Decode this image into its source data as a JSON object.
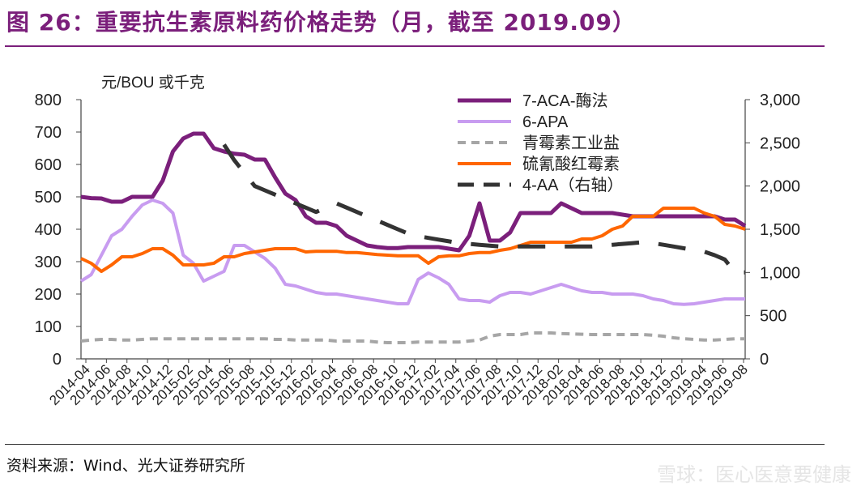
{
  "title": "图 26：重要抗生素原料药价格走势（月，截至 2019.09）",
  "source": "资料来源：Wind、光大证券研究所",
  "watermark": "雪球：医心医意要健康",
  "chart_data": {
    "type": "line",
    "ylabel_left": "元/BOU 或千克",
    "ylim_left": [
      0,
      800
    ],
    "yticks_left": [
      "0",
      "100",
      "200",
      "300",
      "400",
      "500",
      "600",
      "700",
      "800"
    ],
    "ylim_right": [
      0,
      3000
    ],
    "yticks_right": [
      "0",
      "500",
      "1,000",
      "1,500",
      "2,000",
      "2,500",
      "3,000"
    ],
    "x_tick_labels": [
      "2014-04",
      "2014-06",
      "2014-08",
      "2014-10",
      "2014-12",
      "2015-02",
      "2015-04",
      "2015-06",
      "2015-08",
      "2015-10",
      "2015-12",
      "2016-02",
      "2016-04",
      "2016-06",
      "2016-08",
      "2016-10",
      "2016-12",
      "2017-02",
      "2017-04",
      "2017-06",
      "2017-08",
      "2017-10",
      "2017-12",
      "2018-02",
      "2018-04",
      "2018-06",
      "2018-08",
      "2018-10",
      "2018-12",
      "2019-02",
      "2019-04",
      "2019-06",
      "2019-08"
    ],
    "series": [
      {
        "name": "7-ACA-酶法",
        "axis": "left",
        "color": "#7b1f7b",
        "style": "solid",
        "width": 5,
        "values": [
          500,
          496,
          495,
          485,
          485,
          500,
          500,
          500,
          550,
          640,
          680,
          695,
          695,
          650,
          640,
          633,
          630,
          615,
          615,
          560,
          510,
          490,
          440,
          420,
          420,
          410,
          380,
          365,
          350,
          345,
          342,
          342,
          345,
          345,
          345,
          345,
          340,
          335,
          380,
          480,
          365,
          365,
          390,
          450,
          450,
          450,
          450,
          480,
          465,
          450,
          450,
          450,
          450,
          445,
          440,
          440,
          440,
          440,
          440,
          440,
          440,
          440,
          440,
          430,
          430,
          410
        ]
      },
      {
        "name": "6-APA",
        "axis": "left",
        "color": "#c89cf0",
        "style": "solid",
        "width": 4,
        "values": [
          240,
          260,
          320,
          380,
          400,
          440,
          475,
          490,
          480,
          450,
          320,
          295,
          240,
          255,
          270,
          350,
          350,
          330,
          310,
          280,
          230,
          225,
          215,
          205,
          200,
          200,
          195,
          190,
          185,
          180,
          175,
          170,
          170,
          245,
          265,
          250,
          230,
          185,
          180,
          180,
          175,
          195,
          205,
          205,
          200,
          210,
          220,
          230,
          220,
          210,
          205,
          205,
          200,
          200,
          200,
          195,
          185,
          180,
          170,
          168,
          170,
          175,
          180,
          185,
          185,
          185
        ]
      },
      {
        "name": "青霉素工业盐",
        "axis": "left",
        "color": "#a6a6a6",
        "style": "dash",
        "width": 4,
        "values": [
          55,
          58,
          60,
          60,
          58,
          58,
          60,
          62,
          62,
          62,
          62,
          62,
          62,
          62,
          62,
          62,
          62,
          62,
          62,
          60,
          60,
          58,
          58,
          58,
          58,
          55,
          55,
          55,
          55,
          52,
          50,
          50,
          50,
          52,
          52,
          52,
          52,
          52,
          55,
          58,
          70,
          75,
          75,
          75,
          80,
          80,
          80,
          78,
          77,
          76,
          75,
          75,
          75,
          75,
          75,
          75,
          73,
          70,
          65,
          62,
          60,
          58,
          58,
          60,
          62,
          62
        ]
      },
      {
        "name": "硫氰酸红霉素",
        "axis": "left",
        "color": "#ff6600",
        "style": "solid",
        "width": 4,
        "values": [
          310,
          295,
          270,
          290,
          315,
          315,
          325,
          340,
          340,
          320,
          290,
          290,
          290,
          295,
          315,
          315,
          325,
          330,
          335,
          340,
          340,
          340,
          330,
          332,
          332,
          332,
          328,
          328,
          325,
          322,
          320,
          318,
          318,
          318,
          295,
          315,
          318,
          318,
          325,
          328,
          328,
          335,
          340,
          350,
          360,
          360,
          360,
          360,
          360,
          370,
          370,
          380,
          400,
          410,
          440,
          440,
          440,
          465,
          465,
          465,
          465,
          450,
          440,
          415,
          410,
          400
        ]
      },
      {
        "name": "4-AA（右轴）",
        "axis": "right",
        "color": "#333333",
        "style": "longdash",
        "width": 5,
        "values": [
          null,
          null,
          null,
          null,
          null,
          null,
          null,
          null,
          null,
          null,
          null,
          null,
          null,
          null,
          2480,
          2300,
          2150,
          2000,
          1950,
          1900,
          1850,
          1800,
          1750,
          1700,
          1750,
          1800,
          1750,
          1700,
          1650,
          1600,
          1550,
          1500,
          1450,
          1420,
          1400,
          1380,
          1360,
          1340,
          1330,
          1320,
          1310,
          1300,
          1300,
          1300,
          1300,
          1300,
          1300,
          1300,
          1300,
          1300,
          1300,
          1310,
          1320,
          1330,
          1340,
          1350,
          1340,
          1320,
          1300,
          1280,
          1260,
          1240,
          1200,
          1150,
          1000,
          1000
        ]
      }
    ],
    "legend_position": "top-right"
  }
}
